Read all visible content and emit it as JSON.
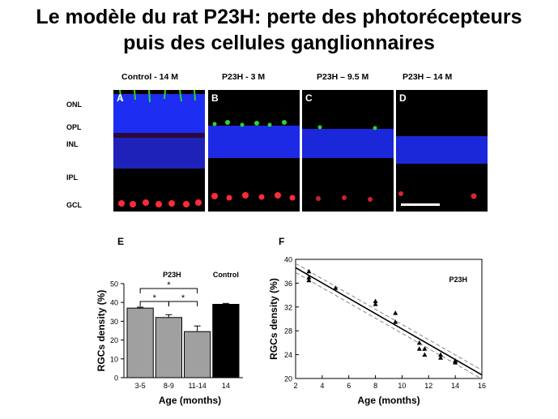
{
  "title": {
    "line1": "Le modèle du rat P23H: perte des photorécepteurs",
    "line2": "puis des cellules ganglionnaires"
  },
  "micrographs": {
    "layer_labels": [
      "ONL",
      "OPL",
      "INL",
      "IPL",
      "GCL"
    ],
    "panels": [
      {
        "letter": "A",
        "header": "Control - 14 M"
      },
      {
        "letter": "B",
        "header": "P23H - 3 M"
      },
      {
        "letter": "C",
        "header": "P23H – 9.5 M"
      },
      {
        "letter": "D",
        "header": "P23H – 14 M"
      }
    ],
    "colors": {
      "nuclei": "#1f2fff",
      "photoreceptor_marker": "#2bd62b",
      "rgc_marker": "#ff2a3a",
      "scale_bar": "#ffffff"
    }
  },
  "chart_data": [
    {
      "panel_letter": "E",
      "type": "bar",
      "categories": [
        "3-5",
        "8-9",
        "11-14",
        "14"
      ],
      "values": [
        37,
        32,
        24.5,
        39
      ],
      "errors": [
        0.5,
        1.5,
        3,
        0.5
      ],
      "colors": [
        "#a0a0a0",
        "#a0a0a0",
        "#a0a0a0",
        "#000000"
      ],
      "ylabel": "RGCs density (%)",
      "xlabel": "Age (months)",
      "ylim": [
        0,
        50
      ],
      "yticks": [
        0,
        10,
        20,
        30,
        40,
        50
      ],
      "group_labels": [
        "P23H",
        "Control"
      ],
      "significance": [
        "*",
        "*",
        "*"
      ]
    },
    {
      "panel_letter": "F",
      "type": "scatter",
      "series": [
        {
          "name": "P23H",
          "x": [
            3,
            3,
            3,
            5,
            8,
            8,
            9.5,
            9.5,
            11.3,
            11.3,
            11.7,
            11.7,
            12.9,
            12.9,
            14,
            14
          ],
          "y": [
            38,
            37,
            36.5,
            35.2,
            33,
            32.5,
            31,
            29.5,
            26,
            25,
            25,
            24,
            24,
            23.5,
            23,
            22.7
          ]
        }
      ],
      "fit": {
        "x": [
          2,
          16
        ],
        "y": [
          38.6,
          20.6
        ]
      },
      "confidence_band": {
        "upper_y": [
          39.3,
          21.4
        ],
        "lower_y": [
          37.8,
          19.9
        ]
      },
      "xlabel": "Age (months)",
      "ylabel": "RGCs density (%)",
      "xlim": [
        2,
        16
      ],
      "ylim": [
        20,
        40
      ],
      "xticks": [
        2,
        4,
        6,
        8,
        10,
        12,
        14,
        16
      ],
      "yticks": [
        20,
        24,
        28,
        32,
        36,
        40
      ],
      "annotation": "P23H"
    }
  ]
}
